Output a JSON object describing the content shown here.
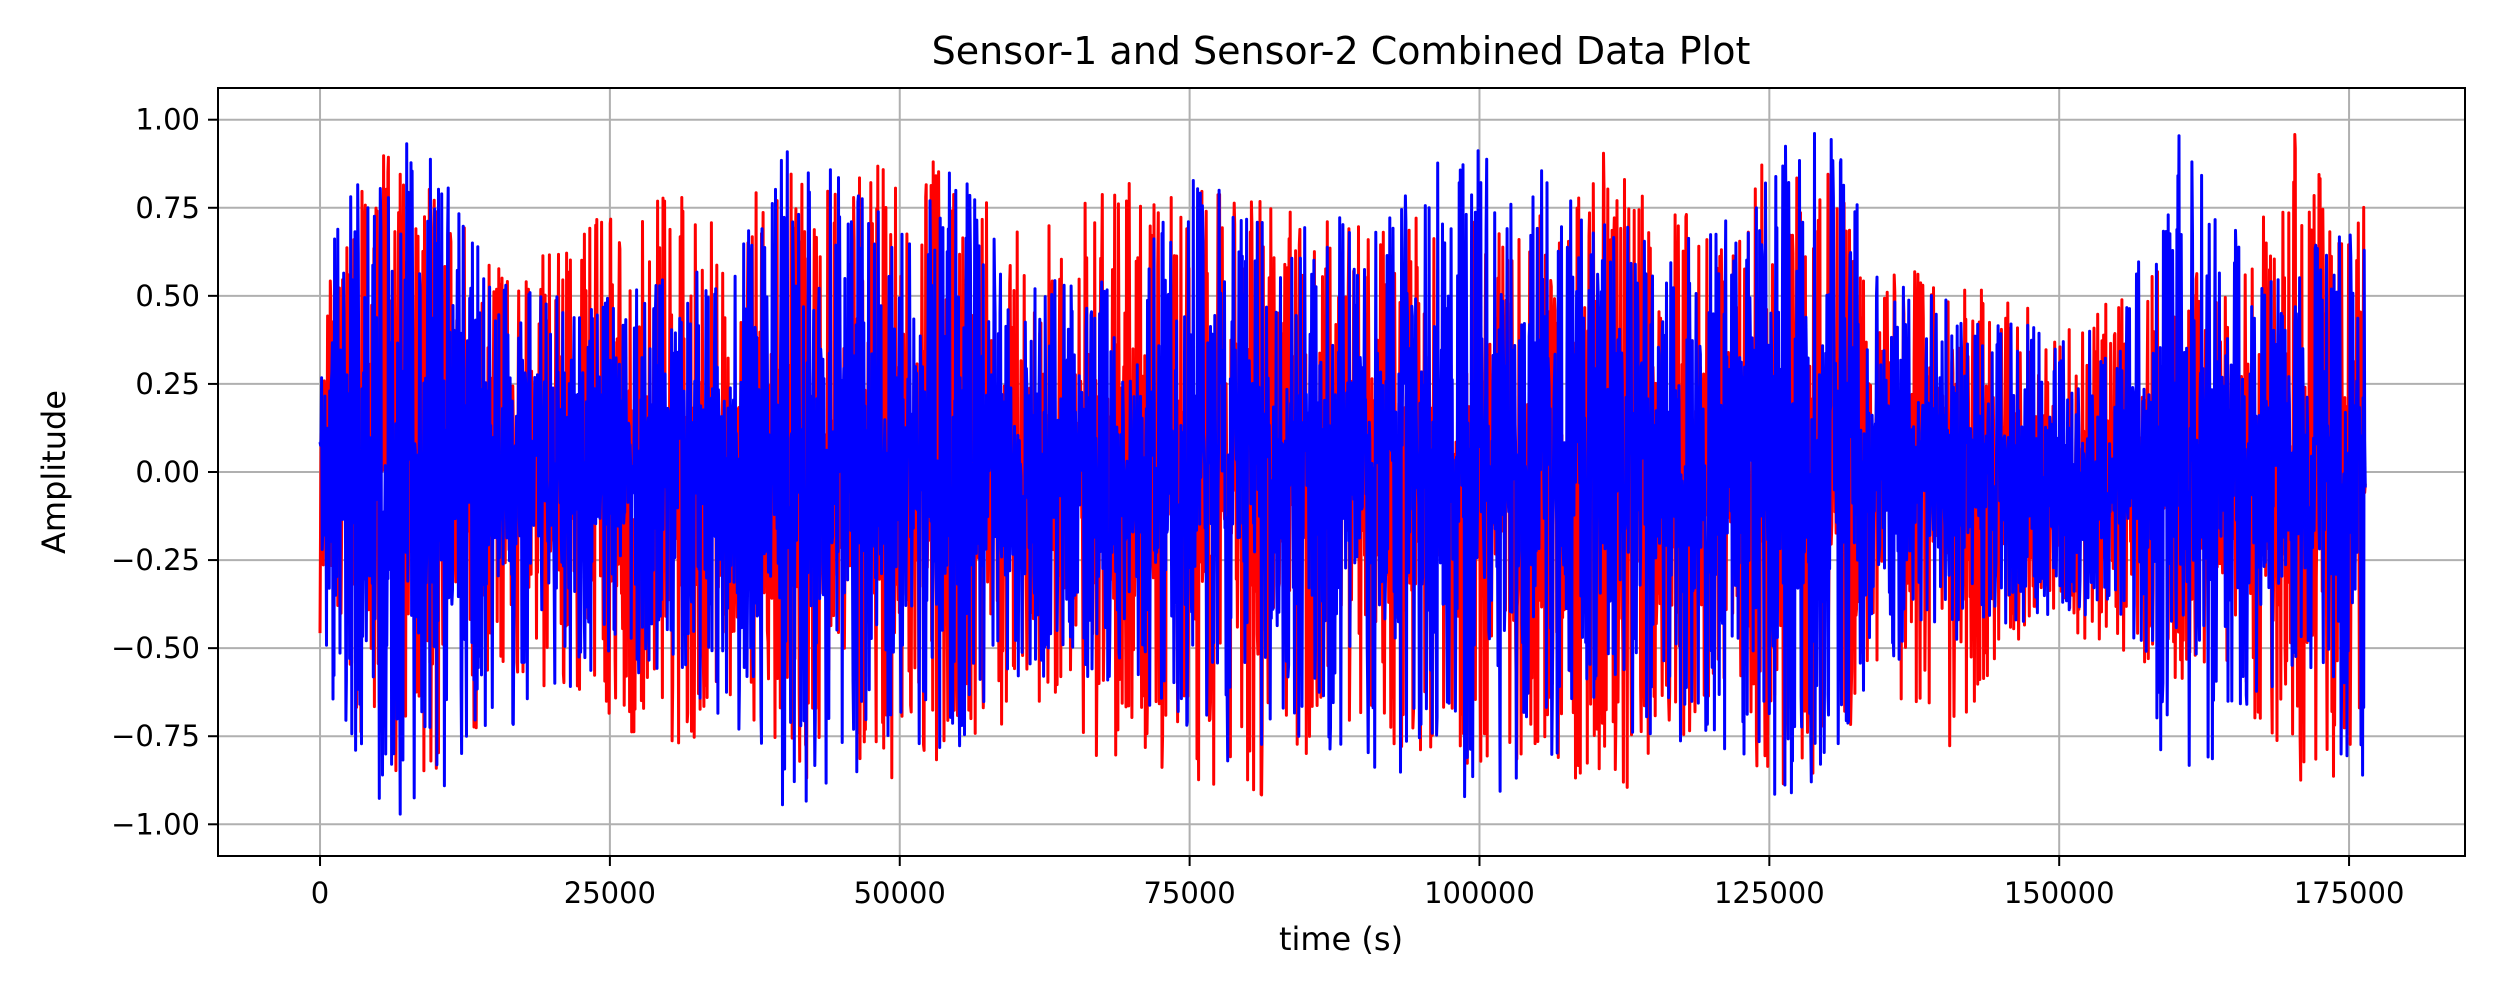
{
  "chart_data": {
    "type": "line",
    "title": "Sensor-1 and Sensor-2 Combined Data Plot",
    "xlabel": "time (s)",
    "ylabel": "Amplitude",
    "xlim": [
      -8800,
      185000
    ],
    "ylim": [
      -1.09,
      1.09
    ],
    "x_ticks": [
      0,
      25000,
      50000,
      75000,
      100000,
      125000,
      150000,
      175000
    ],
    "y_ticks": [
      -1.0,
      -0.75,
      -0.5,
      -0.25,
      0.0,
      0.25,
      0.5,
      0.75,
      1.0
    ],
    "x_tick_labels": [
      "0",
      "25000",
      "50000",
      "75000",
      "100000",
      "125000",
      "150000",
      "175000"
    ],
    "y_tick_labels": [
      "−1.00",
      "−0.75",
      "−0.50",
      "−0.25",
      "0.00",
      "0.25",
      "0.50",
      "0.75",
      "1.00"
    ],
    "grid": true,
    "legend": "none",
    "x_range": [
      0,
      176400
    ],
    "series": [
      {
        "color": "#ff0000",
        "envelope": {
          "x": [
            0,
            5000,
            10000,
            15000,
            20000,
            25000,
            30000,
            35000,
            40000,
            45000,
            50000,
            55000,
            60000,
            65000,
            70000,
            75000,
            80000,
            85000,
            90000,
            95000,
            100000,
            105000,
            110000,
            115000,
            120000,
            125000,
            130000,
            135000,
            140000,
            145000,
            150000,
            155000,
            160000,
            165000,
            170000,
            176000
          ],
          "max": [
            0.55,
            0.95,
            0.85,
            0.6,
            0.65,
            0.75,
            0.8,
            0.75,
            0.9,
            0.8,
            0.95,
            0.85,
            0.7,
            0.75,
            0.85,
            0.8,
            0.8,
            0.75,
            0.7,
            0.75,
            0.8,
            0.75,
            0.98,
            0.8,
            0.7,
            0.9,
            0.85,
            0.6,
            0.55,
            0.5,
            0.45,
            0.5,
            0.6,
            0.55,
            0.98,
            0.85
          ],
          "min": [
            -0.53,
            -0.9,
            -0.85,
            -0.7,
            -0.6,
            -0.75,
            -0.8,
            -0.7,
            -0.9,
            -0.85,
            -0.95,
            -0.8,
            -0.7,
            -0.8,
            -0.85,
            -0.9,
            -0.98,
            -0.8,
            -0.75,
            -0.8,
            -0.85,
            -0.8,
            -0.95,
            -0.85,
            -0.7,
            -0.9,
            -0.85,
            -0.6,
            -0.85,
            -0.5,
            -0.45,
            -0.5,
            -0.6,
            -0.55,
            -0.98,
            -0.85
          ]
        }
      },
      {
        "color": "#0000ff",
        "envelope": {
          "x": [
            0,
            5000,
            10000,
            15000,
            20000,
            25000,
            30000,
            35000,
            40000,
            45000,
            50000,
            55000,
            60000,
            65000,
            70000,
            75000,
            80000,
            85000,
            90000,
            95000,
            100000,
            105000,
            110000,
            115000,
            120000,
            125000,
            130000,
            135000,
            140000,
            145000,
            150000,
            155000,
            160000,
            165000,
            170000,
            176000
          ],
          "max": [
            0.6,
            0.99,
            0.9,
            0.55,
            0.5,
            0.5,
            0.55,
            0.6,
            0.99,
            0.85,
            0.7,
            0.9,
            0.55,
            0.55,
            0.55,
            0.9,
            0.75,
            0.7,
            0.8,
            0.85,
            0.99,
            0.9,
            0.7,
            0.75,
            0.7,
            0.9,
            0.99,
            0.55,
            0.5,
            0.45,
            0.4,
            0.45,
            0.99,
            0.7,
            0.55,
            0.85
          ],
          "min": [
            -0.55,
            -0.99,
            -0.95,
            -0.75,
            -0.65,
            -0.55,
            -0.6,
            -0.7,
            -0.97,
            -0.9,
            -0.75,
            -0.9,
            -0.6,
            -0.6,
            -0.6,
            -0.9,
            -0.8,
            -0.75,
            -0.85,
            -0.9,
            -0.95,
            -0.9,
            -0.75,
            -0.8,
            -0.75,
            -0.92,
            -0.99,
            -0.55,
            -0.5,
            -0.45,
            -0.4,
            -0.45,
            -0.95,
            -0.75,
            -0.6,
            -0.9
          ]
        }
      }
    ]
  }
}
